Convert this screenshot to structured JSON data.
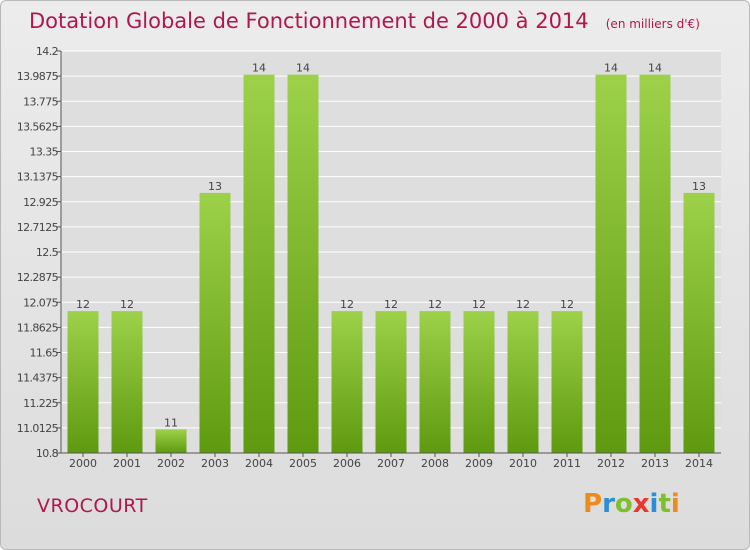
{
  "header": {
    "title": "Dotation Globale de Fonctionnement de 2000 à 2014",
    "subtitle": "(en milliers d'€)"
  },
  "footer": {
    "commune": "VROCOURT",
    "logo_text": "Proxiti",
    "logo_letters": [
      {
        "char": "P",
        "color": "#f08a1c"
      },
      {
        "char": "r",
        "color": "#2a8fd6"
      },
      {
        "char": "o",
        "color": "#7dbf2d"
      },
      {
        "char": "x",
        "color": "#e8382d"
      },
      {
        "char": "i",
        "color": "#2a8fd6"
      },
      {
        "char": "t",
        "color": "#7dbf2d"
      },
      {
        "char": "i",
        "color": "#f08a1c"
      }
    ]
  },
  "colors": {
    "title": "#b0174f",
    "bar_light": "#9dd14a",
    "bar_dark": "#5e9a10",
    "grid": "#ffffff",
    "axis": "#555555"
  },
  "chart_data": {
    "type": "bar",
    "title": "Dotation Globale de Fonctionnement de 2000 à 2014",
    "subtitle": "(en milliers d'€)",
    "categories": [
      "2000",
      "2001",
      "2002",
      "2003",
      "2004",
      "2005",
      "2006",
      "2007",
      "2008",
      "2009",
      "2010",
      "2011",
      "2012",
      "2013",
      "2014"
    ],
    "values": [
      12,
      12,
      11,
      13,
      14,
      14,
      12,
      12,
      12,
      12,
      12,
      12,
      14,
      14,
      13
    ],
    "data_labels": [
      "12",
      "12",
      "11",
      "13",
      "14",
      "14",
      "12",
      "12",
      "12",
      "12",
      "12",
      "12",
      "14",
      "14",
      "13"
    ],
    "ylim": [
      10.8,
      14.2
    ],
    "yticks": [
      10.8,
      11.0125,
      11.225,
      11.4375,
      11.65,
      11.8625,
      12.075,
      12.2875,
      12.5,
      12.7125,
      12.925,
      13.1375,
      13.35,
      13.5625,
      13.775,
      13.9875,
      14.2
    ],
    "ytick_labels": [
      "10.8",
      "11.0125",
      "11.225",
      "11.4375",
      "11.65",
      "11.8625",
      "12.075",
      "12.2875",
      "12.5",
      "12.7125",
      "12.925",
      "13.1375",
      "13.35",
      "13.5625",
      "13.775",
      "13.9875",
      "14.2"
    ],
    "grid": true,
    "legend": "none"
  }
}
